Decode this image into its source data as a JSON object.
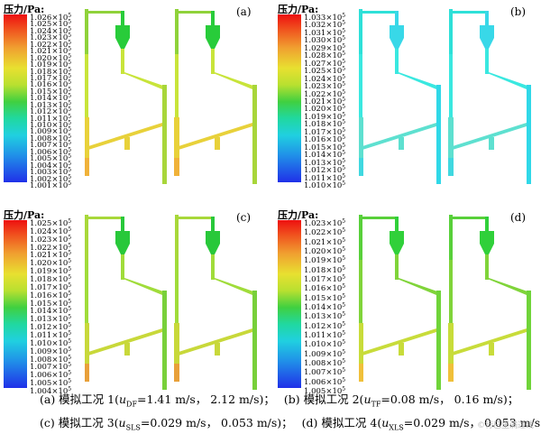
{
  "legend_title": "压力/Pa:",
  "panels": [
    {
      "id": "a",
      "label": "(a)",
      "ticks": [
        "1.026×10",
        "1.025×10",
        "1.024×10",
        "1.023×10",
        "1.022×10",
        "1.021×10",
        "1.020×10",
        "1.019×10",
        "1.018×10",
        "1.017×10",
        "1.016×10",
        "1.015×10",
        "1.014×10",
        "1.013×10",
        "1.012×10",
        "1.011×10",
        "1.010×10",
        "1.009×10",
        "1.008×10",
        "1.007×10",
        "1.006×10",
        "1.005×10",
        "1.004×10",
        "1.003×10",
        "1.002×10",
        "1.001×10"
      ],
      "exponent": "5",
      "colors": {
        "top": "#8fd23a",
        "mid": "#c8e43a",
        "lower": "#e8d13a",
        "bottom": "#f0b23a",
        "cyclone": "#28cc3a",
        "right": "#a8d63a"
      }
    },
    {
      "id": "b",
      "label": "(b)",
      "ticks": [
        "1.033×10",
        "1.032×10",
        "1.031×10",
        "1.030×10",
        "1.029×10",
        "1.028×10",
        "1.027×10",
        "1.025×10",
        "1.024×10",
        "1.023×10",
        "1.022×10",
        "1.021×10",
        "1.020×10",
        "1.019×10",
        "1.018×10",
        "1.017×10",
        "1.016×10",
        "1.015×10",
        "1.014×10",
        "1.013×10",
        "1.012×10",
        "1.011×10",
        "1.010×10"
      ],
      "exponent": "5",
      "colors": {
        "top": "#2ee0d8",
        "mid": "#3ae8e0",
        "lower": "#5ee0d0",
        "bottom": "#40d8e0",
        "cyclone": "#38d8e8",
        "right": "#30d8e8"
      }
    },
    {
      "id": "c",
      "label": "(c)",
      "ticks": [
        "1.025×10",
        "1.024×10",
        "1.023×10",
        "1.022×10",
        "1.021×10",
        "1.020×10",
        "1.019×10",
        "1.018×10",
        "1.017×10",
        "1.016×10",
        "1.015×10",
        "1.014×10",
        "1.013×10",
        "1.012×10",
        "1.011×10",
        "1.010×10",
        "1.009×10",
        "1.008×10",
        "1.007×10",
        "1.006×10",
        "1.005×10",
        "1.004×10"
      ],
      "exponent": "5",
      "colors": {
        "top": "#a8d83a",
        "mid": "#a0dc3a",
        "lower": "#c8d83a",
        "bottom": "#e8a03a",
        "cyclone": "#28c83a",
        "right": "#78d03a"
      }
    },
    {
      "id": "d",
      "label": "(d)",
      "ticks": [
        "1.023×10",
        "1.022×10",
        "1.021×10",
        "1.020×10",
        "1.019×10",
        "1.018×10",
        "1.017×10",
        "1.016×10",
        "1.015×10",
        "1.014×10",
        "1.013×10",
        "1.012×10",
        "1.011×10",
        "1.010×10",
        "1.009×10",
        "1.008×10",
        "1.007×10",
        "1.006×10",
        "1.005×10"
      ],
      "exponent": "5",
      "colors": {
        "top": "#58d03a",
        "mid": "#80d43a",
        "lower": "#c8dc3a",
        "bottom": "#f0c03a",
        "cyclone": "#30d03a",
        "right": "#70d43a"
      }
    }
  ],
  "captions": {
    "line1_a": "(a) 模拟工况 1(",
    "line1_a_var": "u",
    "line1_a_sub": "DF",
    "line1_a_rest": "=1.41 m/s， 2.12 m/s)；",
    "line1_b": "(b) 模拟工况 2(",
    "line1_b_var": "u",
    "line1_b_sub": "TF",
    "line1_b_rest": "=0.08 m/s， 0.16 m/s)；",
    "line2_c": "(c) 模拟工况 3(",
    "line2_c_var": "u",
    "line2_c_sub": "SLS",
    "line2_c_rest": "=0.029 m/s， 0.053 m/s)；",
    "line2_d": "(d) 模拟工况 4(",
    "line2_d_var": "u",
    "line2_d_sub": "XLS",
    "line2_d_rest": "=0.029 m/s， 0.053 m/s)"
  },
  "watermark": "©行已里满过线"
}
